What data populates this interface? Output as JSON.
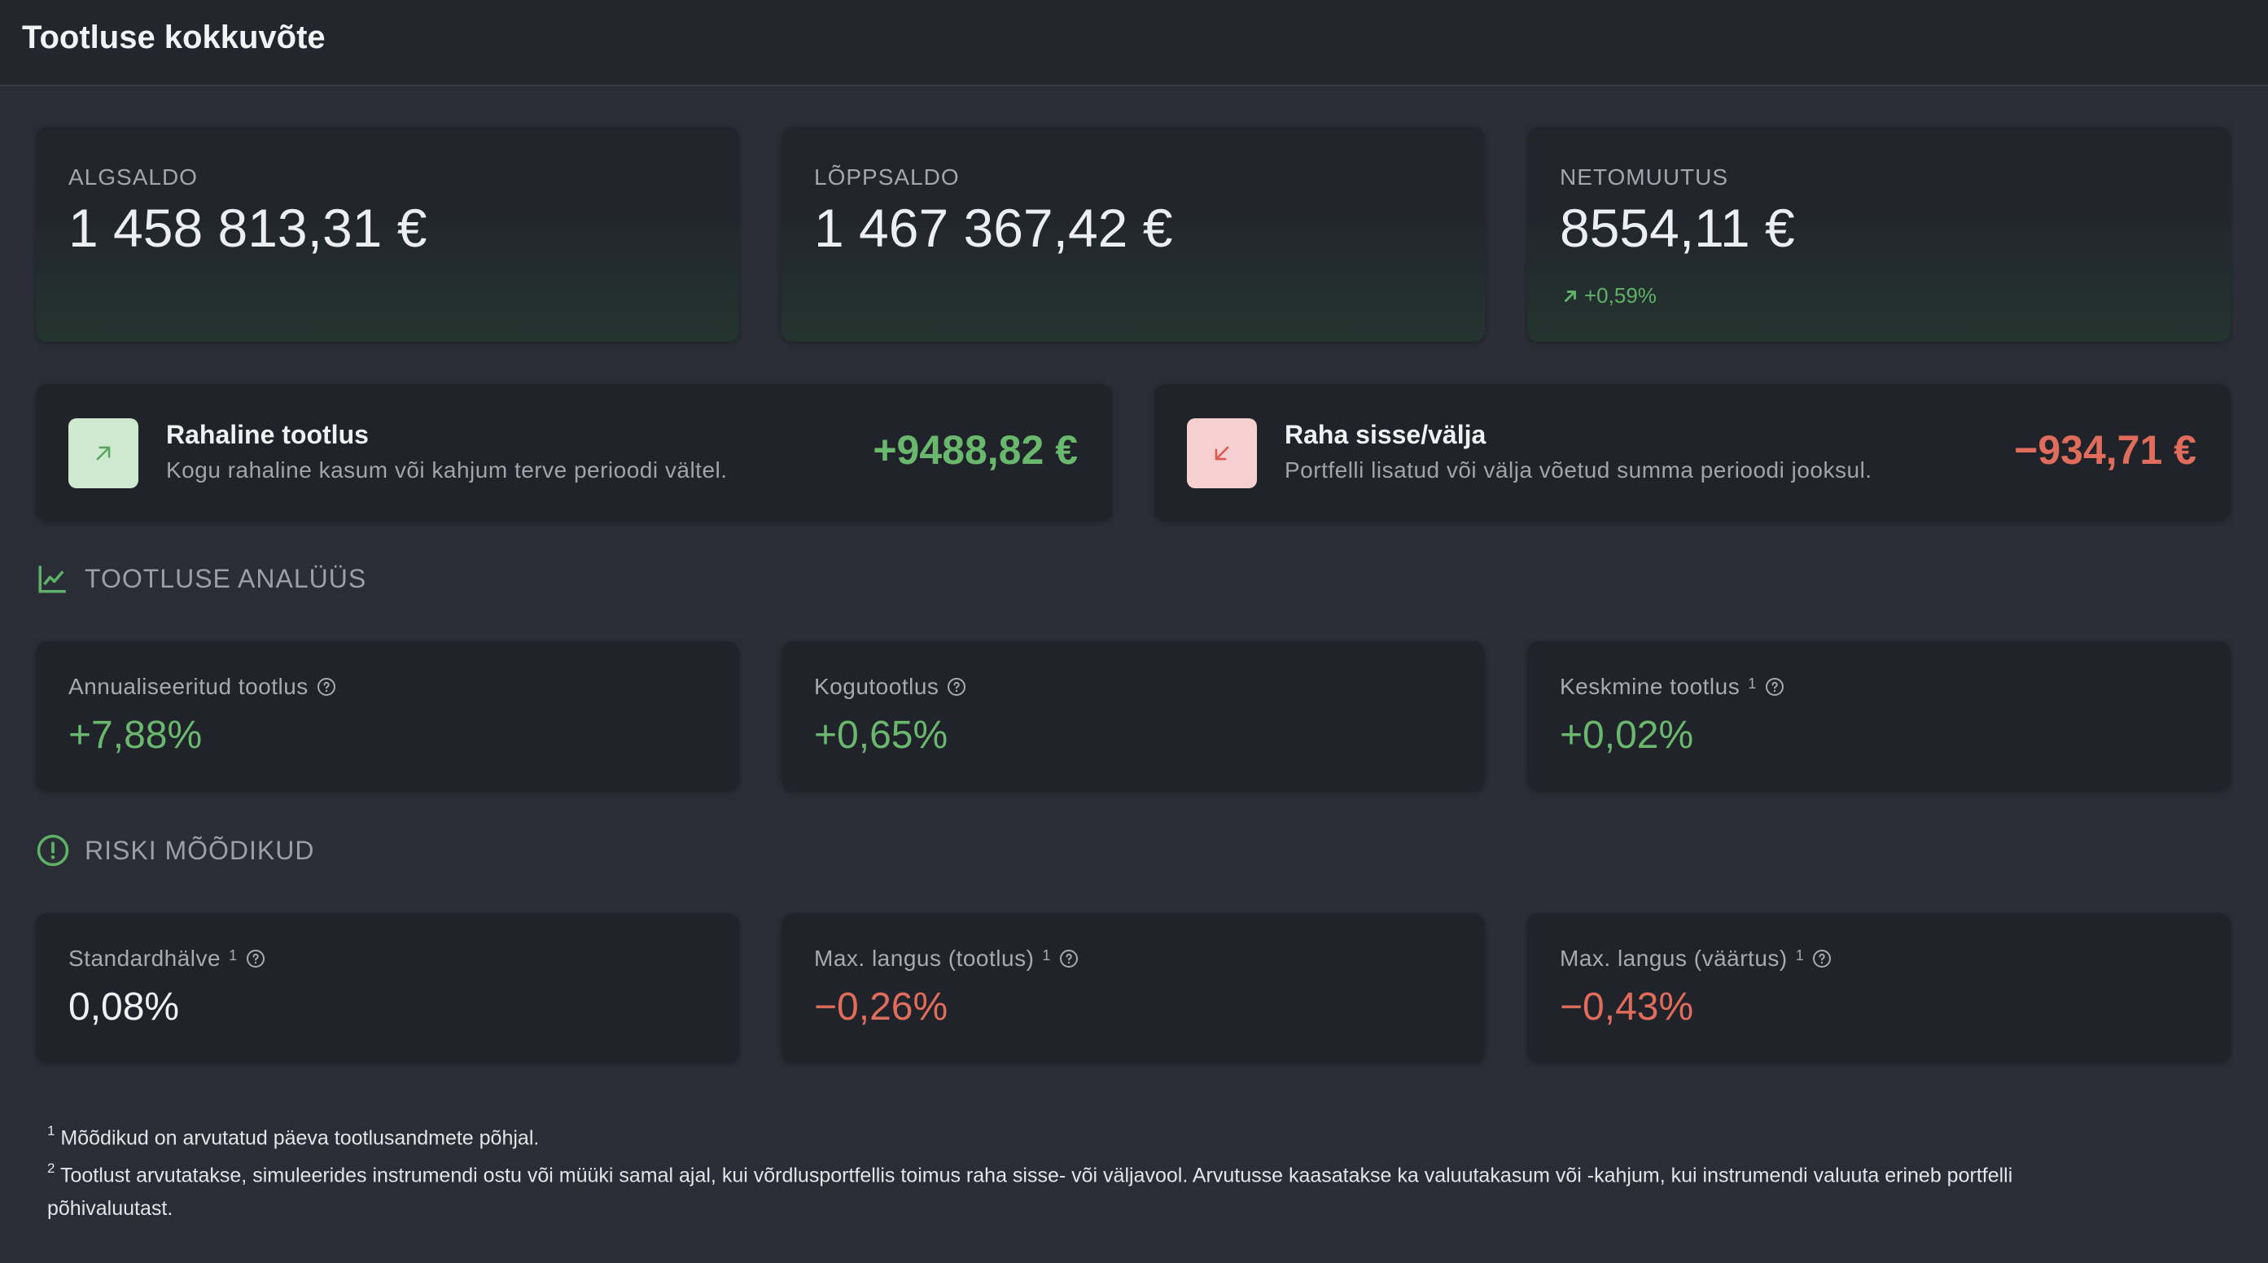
{
  "header": {
    "title": "Tootluse kokkuvõte"
  },
  "balances": [
    {
      "label": "ALGSALDO",
      "value": "1 458 813,31 €"
    },
    {
      "label": "LÕPPSALDO",
      "value": "1 467 367,42 €"
    },
    {
      "label": "NETOMUUTUS",
      "value": "8554,11 €",
      "change": "+0,59%"
    }
  ],
  "flows": [
    {
      "title": "Rahaline tootlus",
      "subtitle": "Kogu rahaline kasum või kahjum terve perioodi vältel.",
      "amount": "+9488,82 €",
      "icon": "arrow-up-right-icon",
      "color": "#6ab86e"
    },
    {
      "title": "Raha sisse/välja",
      "subtitle": "Portfelli lisatud või välja võetud summa perioodi jooksul.",
      "amount": "−934,71 €",
      "icon": "arrow-down-left-icon",
      "color": "#e06d5b"
    }
  ],
  "sections": {
    "analysis": "TOOTLUSE ANALÜÜS",
    "risk": "RISKI MÕÕDIKUD"
  },
  "analysis_metrics": [
    {
      "label": "Annualiseeritud tootlus",
      "sup": "",
      "value": "+7,88%"
    },
    {
      "label": "Kogutootlus",
      "sup": "",
      "value": "+0,65%"
    },
    {
      "label": "Keskmine tootlus",
      "sup": "1",
      "value": "+0,02%"
    }
  ],
  "risk_metrics": [
    {
      "label": "Standardhälve",
      "sup": "1",
      "value": "0,08%"
    },
    {
      "label": "Max. langus (tootlus)",
      "sup": "1",
      "value": "−0,26%"
    },
    {
      "label": "Max. langus (väärtus)",
      "sup": "1",
      "value": "−0,43%"
    }
  ],
  "footnotes": [
    {
      "mark": "1",
      "text": "Mõõdikud on arvutatud päeva tootlusandmete põhjal."
    },
    {
      "mark": "2",
      "text": "Tootlust arvutatakse, simuleerides instrumendi ostu või müüki samal ajal, kui võrdlusportfellis toimus raha sisse- või väljavool. Arvutusse kaasatakse ka valuutakasum või -kahjum, kui instrumendi valuuta erineb portfelli põhivaluutast."
    }
  ],
  "colors": {
    "positive": "#6ab86e",
    "negative": "#e06d5b",
    "background": "#2b2d36",
    "card": "#21232a"
  }
}
